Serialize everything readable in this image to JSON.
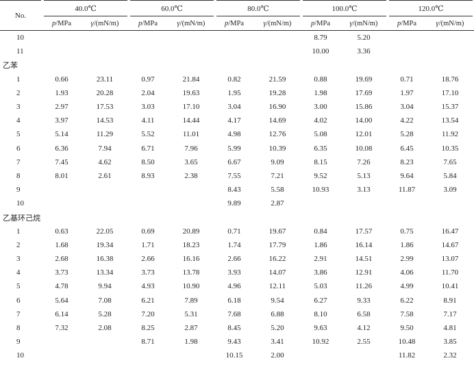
{
  "header": {
    "no": "No.",
    "temperatures": [
      "40.0℃",
      "60.0℃",
      "80.0℃",
      "100.0℃",
      "120.0℃"
    ],
    "sub": [
      {
        "symbol": "p",
        "unit": "/MPa"
      },
      {
        "symbol": "γ",
        "unit": "/(mN/m)"
      }
    ]
  },
  "rows": [
    {
      "no": "10",
      "cells": [
        null,
        null,
        null,
        null,
        null,
        null,
        "8.79",
        "5.20",
        null,
        null
      ]
    },
    {
      "no": "11",
      "cells": [
        null,
        null,
        null,
        null,
        null,
        null,
        "10.00",
        "3.36",
        null,
        null
      ]
    },
    {
      "section": "乙苯"
    },
    {
      "no": "1",
      "cells": [
        "0.66",
        "23.11",
        "0.97",
        "21.84",
        "0.82",
        "21.59",
        "0.88",
        "19.69",
        "0.71",
        "18.76"
      ]
    },
    {
      "no": "2",
      "cells": [
        "1.93",
        "20.28",
        "2.04",
        "19.63",
        "1.95",
        "19.28",
        "1.98",
        "17.69",
        "1.97",
        "17.10"
      ]
    },
    {
      "no": "3",
      "cells": [
        "2.97",
        "17.53",
        "3.03",
        "17.10",
        "3.04",
        "16.90",
        "3.00",
        "15.86",
        "3.04",
        "15.37"
      ]
    },
    {
      "no": "4",
      "cells": [
        "3.97",
        "14.53",
        "4.11",
        "14.44",
        "4.17",
        "14.69",
        "4.02",
        "14.00",
        "4.22",
        "13.54"
      ]
    },
    {
      "no": "5",
      "cells": [
        "5.14",
        "11.29",
        "5.52",
        "11.01",
        "4.98",
        "12.76",
        "5.08",
        "12.01",
        "5.28",
        "11.92"
      ]
    },
    {
      "no": "6",
      "cells": [
        "6.36",
        "7.94",
        "6.71",
        "7.96",
        "5.99",
        "10.39",
        "6.35",
        "10.08",
        "6.45",
        "10.35"
      ]
    },
    {
      "no": "7",
      "cells": [
        "7.45",
        "4.62",
        "8.50",
        "3.65",
        "6.67",
        "9.09",
        "8.15",
        "7.26",
        "8.23",
        "7.65"
      ]
    },
    {
      "no": "8",
      "cells": [
        "8.01",
        "2.61",
        "8.93",
        "2.38",
        "7.55",
        "7.21",
        "9.52",
        "5.13",
        "9.64",
        "5.84"
      ]
    },
    {
      "no": "9",
      "cells": [
        null,
        null,
        null,
        null,
        "8.43",
        "5.58",
        "10.93",
        "3.13",
        "11.87",
        "3.09"
      ]
    },
    {
      "no": "10",
      "cells": [
        null,
        null,
        null,
        null,
        "9.89",
        "2.87",
        null,
        null,
        null,
        null
      ]
    },
    {
      "section": "乙基环己烷"
    },
    {
      "no": "1",
      "cells": [
        "0.63",
        "22.05",
        "0.69",
        "20.89",
        "0.71",
        "19.67",
        "0.84",
        "17.57",
        "0.75",
        "16.47"
      ]
    },
    {
      "no": "2",
      "cells": [
        "1.68",
        "19.34",
        "1.71",
        "18.23",
        "1.74",
        "17.79",
        "1.86",
        "16.14",
        "1.86",
        "14.67"
      ]
    },
    {
      "no": "3",
      "cells": [
        "2.68",
        "16.38",
        "2.66",
        "16.16",
        "2.66",
        "16.22",
        "2.91",
        "14.51",
        "2.99",
        "13.07"
      ]
    },
    {
      "no": "4",
      "cells": [
        "3.73",
        "13.34",
        "3.73",
        "13.78",
        "3.93",
        "14.07",
        "3.86",
        "12.91",
        "4.06",
        "11.70"
      ]
    },
    {
      "no": "5",
      "cells": [
        "4.78",
        "9.94",
        "4.93",
        "10.90",
        "4.96",
        "12.11",
        "5.03",
        "11.26",
        "4.99",
        "10.41"
      ]
    },
    {
      "no": "6",
      "cells": [
        "5.64",
        "7.08",
        "6.21",
        "7.89",
        "6.18",
        "9.54",
        "6.27",
        "9.33",
        "6.22",
        "8.91"
      ]
    },
    {
      "no": "7",
      "cells": [
        "6.14",
        "5.28",
        "7.20",
        "5.31",
        "7.68",
        "6.88",
        "8.10",
        "6.58",
        "7.58",
        "7.17"
      ]
    },
    {
      "no": "8",
      "cells": [
        "7.32",
        "2.08",
        "8.25",
        "2.87",
        "8.45",
        "5.20",
        "9.63",
        "4.12",
        "9.50",
        "4.81"
      ]
    },
    {
      "no": "9",
      "cells": [
        null,
        null,
        "8.71",
        "1.98",
        "9.43",
        "3.41",
        "10.92",
        "2.55",
        "10.48",
        "3.85"
      ]
    },
    {
      "no": "10",
      "cells": [
        null,
        null,
        null,
        null,
        "10.15",
        "2.00",
        null,
        null,
        "11.82",
        "2.32"
      ]
    }
  ]
}
